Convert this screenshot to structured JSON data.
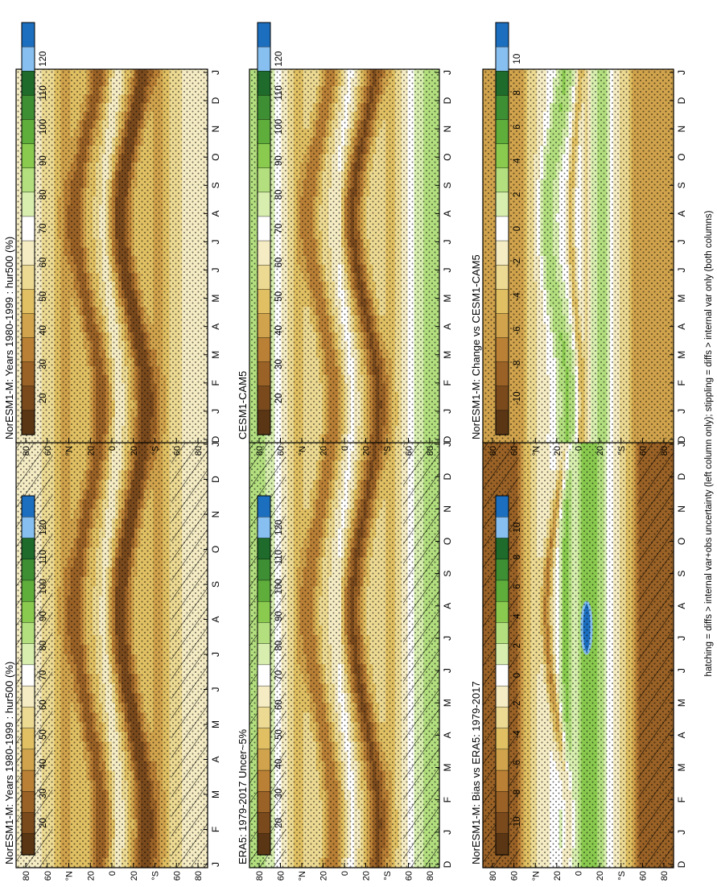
{
  "figure": {
    "footnote": "hatching = diffs > internal var+obs uncertainty (left column only); stippling = diffs > internal var only (both columns)"
  },
  "chart_data": [
    {
      "type": "heatmap",
      "title": "NorESM1-M: Years 1980-1999 : hur500 (%)",
      "xlabel": "",
      "ylabel": "",
      "x_categories": [
        "J",
        "F",
        "M",
        "A",
        "M",
        "J",
        "J",
        "A",
        "S",
        "O",
        "N",
        "D",
        "J"
      ],
      "y_ticks": [
        "80",
        "60",
        "°N",
        "20",
        "0",
        "20",
        "°S",
        "60",
        "80"
      ],
      "y_range": [
        -90,
        90
      ],
      "colorbar": {
        "ticks": [
          "120",
          "110",
          "100",
          "90",
          "80",
          "70",
          "60",
          "50",
          "40",
          "30",
          "20"
        ]
      },
      "pattern": "abs",
      "hatching": true,
      "stippling": true
    },
    {
      "type": "heatmap",
      "title": "NorESM1-M: Years 1980-1999 : hur500 (%)",
      "xlabel": "",
      "ylabel": "",
      "x_categories": [
        "D",
        "J",
        "F",
        "M",
        "A",
        "M",
        "J",
        "J",
        "A",
        "S",
        "O",
        "N",
        "D",
        "J"
      ],
      "y_ticks": [
        "80",
        "60",
        "°N",
        "20",
        "0",
        "20",
        "°S",
        "60",
        "80"
      ],
      "y_range": [
        -90,
        90
      ],
      "colorbar": {
        "ticks": [
          "120",
          "110",
          "100",
          "90",
          "80",
          "70",
          "60",
          "50",
          "40",
          "30",
          "20"
        ]
      },
      "pattern": "abs",
      "hatching": false,
      "stippling": true
    },
    {
      "type": "heatmap",
      "title": "ERA5: 1979-2017 Uncer~5%",
      "xlabel": "",
      "ylabel": "",
      "x_categories": [
        "D",
        "J",
        "F",
        "M",
        "A",
        "M",
        "J",
        "J",
        "A",
        "S",
        "O",
        "N",
        "D",
        "J"
      ],
      "y_ticks": [
        "80",
        "60",
        "°N",
        "20",
        "0",
        "20",
        "°S",
        "60",
        "80"
      ],
      "y_range": [
        -90,
        90
      ],
      "colorbar": {
        "ticks": [
          "120",
          "110",
          "100",
          "90",
          "80",
          "70",
          "60",
          "50",
          "40",
          "30",
          "20"
        ]
      },
      "pattern": "abs_moist",
      "hatching": true,
      "stippling": true
    },
    {
      "type": "heatmap",
      "title": "CESM1-CAM5",
      "xlabel": "",
      "ylabel": "",
      "x_categories": [
        "D",
        "J",
        "F",
        "M",
        "A",
        "M",
        "J",
        "J",
        "A",
        "S",
        "O",
        "N",
        "D",
        "J"
      ],
      "y_ticks": [
        "80",
        "60",
        "°N",
        "20",
        "0",
        "20",
        "°S",
        "60",
        "80"
      ],
      "y_range": [
        -90,
        90
      ],
      "colorbar": {
        "ticks": [
          "120",
          "110",
          "100",
          "90",
          "80",
          "70",
          "60",
          "50",
          "40",
          "30",
          "20"
        ]
      },
      "pattern": "abs_moist",
      "hatching": false,
      "stippling": true
    },
    {
      "type": "heatmap",
      "title": "NorESM1-M: Bias vs ERA5: 1979-2017",
      "xlabel": "",
      "ylabel": "",
      "x_categories": [
        "D",
        "J",
        "F",
        "M",
        "A",
        "M",
        "J",
        "J",
        "A",
        "S",
        "O",
        "N",
        "D",
        "J"
      ],
      "y_ticks": [
        "80",
        "60",
        "°N",
        "20",
        "0",
        "20",
        "°S",
        "60",
        "80"
      ],
      "y_range": [
        -90,
        90
      ],
      "colorbar": {
        "ticks": [
          "10",
          "8",
          "6",
          "4",
          "2",
          "0",
          "-2",
          "-4",
          "-6",
          "-8",
          "-10"
        ]
      },
      "pattern": "bias",
      "hatching": true,
      "stippling": true
    },
    {
      "type": "heatmap",
      "title": "NorESM1-M: Change vs CESM1-CAM5",
      "xlabel": "",
      "ylabel": "",
      "x_categories": [
        "D",
        "J",
        "F",
        "M",
        "A",
        "M",
        "J",
        "J",
        "A",
        "S",
        "O",
        "N",
        "D",
        "J"
      ],
      "y_ticks": [
        "80",
        "60",
        "°N",
        "20",
        "0",
        "20",
        "°S",
        "60",
        "80"
      ],
      "y_range": [
        -90,
        90
      ],
      "colorbar": {
        "ticks": [
          "10",
          "8",
          "6",
          "4",
          "2",
          "0",
          "-2",
          "-4",
          "-6",
          "-8",
          "-10"
        ]
      },
      "pattern": "change",
      "hatching": false,
      "stippling": true
    }
  ],
  "colors": {
    "abs_palette": [
      "#1c6fbf",
      "#86bff0",
      "#1e6b2b",
      "#3e8f33",
      "#5fae3c",
      "#8acb4f",
      "#b3df7f",
      "#d7eeaf",
      "#ffffff",
      "#f5ecc4",
      "#ecd992",
      "#e0c063",
      "#d0a34c",
      "#b98036",
      "#9a6226",
      "#7a4a1d",
      "#5a3615"
    ],
    "diff_palette": [
      "#1c6fbf",
      "#86bff0",
      "#1e6b2b",
      "#3e8f33",
      "#5fae3c",
      "#8acb4f",
      "#b3df7f",
      "#d7eeaf",
      "#ffffff",
      "#f5ecc4",
      "#ecd992",
      "#e0c063",
      "#d0a34c",
      "#b98036",
      "#9a6226",
      "#7a4a1d",
      "#5a3615"
    ]
  }
}
